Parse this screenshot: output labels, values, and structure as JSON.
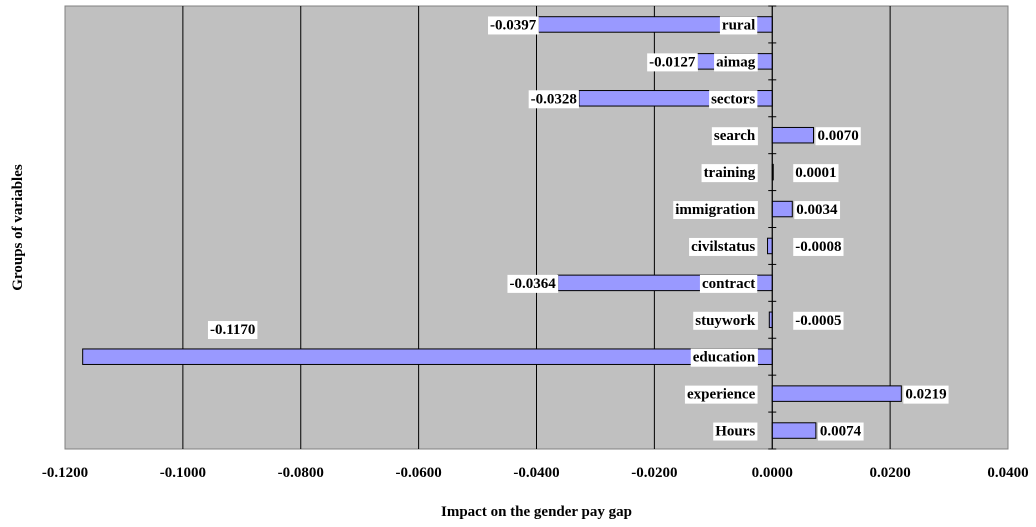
{
  "chart_data": {
    "type": "bar",
    "orientation": "horizontal",
    "xlabel": "Impact on the gender pay gap",
    "ylabel": "Groups of variables",
    "xlim": [
      -0.12,
      0.04
    ],
    "x_ticks": [
      "-0.1200",
      "-0.1000",
      "-0.0800",
      "-0.0600",
      "-0.0400",
      "-0.0200",
      "0.0000",
      "0.0200",
      "0.0400"
    ],
    "grid": "vertical",
    "plot_background": "#c0c0c0",
    "bar_color": "#9999ff",
    "categories": [
      "rural",
      "aimag",
      "sectors",
      "search",
      "training",
      "immigration",
      "civilstatus",
      "contract",
      "stuywork",
      "education",
      "experience",
      "Hours"
    ],
    "values": [
      -0.0397,
      -0.0127,
      -0.0328,
      0.007,
      0.0001,
      0.0034,
      -0.0008,
      -0.0364,
      -0.0005,
      -0.117,
      0.0219,
      0.0074
    ],
    "value_labels": [
      "-0.0397",
      "-0.0127",
      "-0.0328",
      "0.0070",
      "0.0001",
      "0.0034",
      "-0.0008",
      "-0.0364",
      "-0.0005",
      "-0.1170",
      "0.0219",
      "0.0074"
    ]
  }
}
